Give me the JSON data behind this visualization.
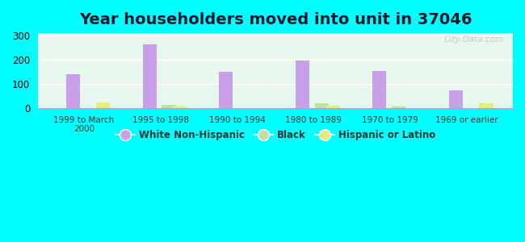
{
  "title": "Year householders moved into unit in 37046",
  "categories": [
    "1999 to March\n2000",
    "1995 to 1998",
    "1990 to 1994",
    "1980 to 1989",
    "1970 to 1979",
    "1969 or earlier"
  ],
  "white_non_hispanic": [
    140,
    265,
    150,
    198,
    153,
    72
  ],
  "black": [
    0,
    12,
    0,
    18,
    6,
    0
  ],
  "hispanic_or_latino": [
    22,
    7,
    0,
    10,
    0,
    20
  ],
  "bar_width": 0.18,
  "colors": {
    "white_non_hispanic": "#c9a0e8",
    "black": "#c8dba0",
    "hispanic_or_latino": "#eeea7a"
  },
  "ylim": [
    0,
    310
  ],
  "yticks": [
    0,
    100,
    200,
    300
  ],
  "background_color": "#00ffff",
  "plot_bg": "#e8f7ee",
  "watermark": "City-Data.com",
  "title_fontsize": 14,
  "legend_labels": [
    "White Non-Hispanic",
    "Black",
    "Hispanic or Latino"
  ]
}
